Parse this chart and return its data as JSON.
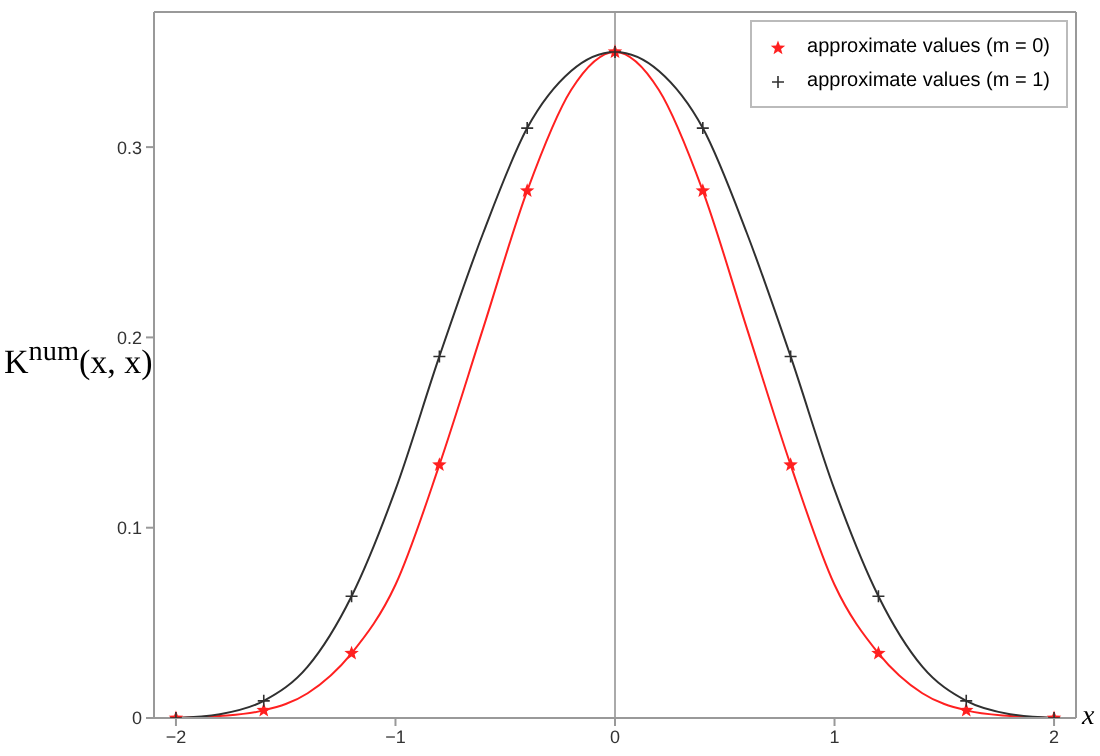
{
  "chart_data": {
    "type": "line",
    "ylabel": "K$^{num}$(x, x)",
    "xlabel": "x",
    "xlim": [
      -2.1,
      2.1
    ],
    "xticks": [
      -2,
      -1,
      0,
      1,
      2
    ],
    "ylim": [
      0,
      0.371
    ],
    "yticks": [
      0,
      0.1,
      0.2,
      0.3
    ],
    "grid": false,
    "legend": "top right",
    "line_style": "solid",
    "ref_lines": [
      {
        "axis": "x",
        "value": 0,
        "color": "#aaaaaa"
      }
    ],
    "series": [
      {
        "color": "#ff2020",
        "marker": "none",
        "x": [
          -2,
          -1.8,
          -1.6,
          -1.4,
          -1.2,
          -1,
          -0.8,
          -0.6,
          -0.4,
          -0.2,
          0,
          0.2,
          0.4,
          0.6,
          0.8,
          1,
          1.2,
          1.4,
          1.6,
          1.8,
          2
        ],
        "values": [
          0,
          0.001,
          0.004,
          0.013,
          0.034,
          0.07,
          0.133,
          0.205,
          0.277,
          0.33,
          0.35,
          0.33,
          0.277,
          0.205,
          0.133,
          0.07,
          0.034,
          0.013,
          0.004,
          0.001,
          0
        ]
      },
      {
        "color": "#303030",
        "marker": "none",
        "x": [
          -2,
          -1.8,
          -1.6,
          -1.4,
          -1.2,
          -1,
          -0.8,
          -0.6,
          -0.4,
          -0.2,
          0,
          0.2,
          0.4,
          0.6,
          0.8,
          1,
          1.2,
          1.4,
          1.6,
          1.8,
          2
        ],
        "values": [
          0,
          0.002,
          0.009,
          0.027,
          0.064,
          0.12,
          0.19,
          0.255,
          0.31,
          0.34,
          0.35,
          0.34,
          0.31,
          0.255,
          0.19,
          0.12,
          0.064,
          0.027,
          0.009,
          0.002,
          0
        ]
      },
      {
        "type": "scatter",
        "name": "approximate values (m = 0)",
        "color": "#ff2020",
        "marker": "star",
        "x": [
          -2,
          -1.6,
          -1.2,
          -0.8,
          -0.4,
          0,
          0.4,
          0.8,
          1.2,
          1.6,
          2
        ],
        "values": [
          0,
          0.004,
          0.034,
          0.133,
          0.277,
          0.35,
          0.277,
          0.133,
          0.034,
          0.004,
          0
        ]
      },
      {
        "type": "scatter",
        "name": "approximate values (m = 1)",
        "color": "#303030",
        "marker": "cross",
        "x": [
          -2,
          -1.6,
          -1.2,
          -0.8,
          -0.4,
          0,
          0.4,
          0.8,
          1.2,
          1.6,
          2
        ],
        "values": [
          0,
          0.009,
          0.064,
          0.19,
          0.31,
          0.35,
          0.31,
          0.19,
          0.064,
          0.009,
          0
        ]
      }
    ]
  }
}
